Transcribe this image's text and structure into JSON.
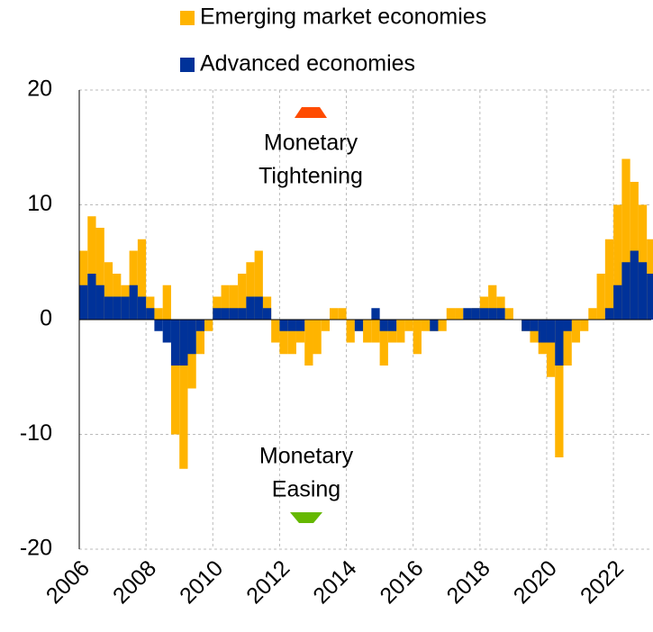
{
  "chart_data": {
    "type": "bar",
    "x": [
      2006,
      2006.25,
      2006.5,
      2006.75,
      2007,
      2007.25,
      2007.5,
      2007.75,
      2008,
      2008.25,
      2008.5,
      2008.75,
      2009,
      2009.25,
      2009.5,
      2009.75,
      2010,
      2010.25,
      2010.5,
      2010.75,
      2011,
      2011.25,
      2011.5,
      2011.75,
      2012,
      2012.25,
      2012.5,
      2012.75,
      2013,
      2013.25,
      2013.5,
      2013.75,
      2014,
      2014.25,
      2014.5,
      2014.75,
      2015,
      2015.25,
      2015.5,
      2015.75,
      2016,
      2016.25,
      2016.5,
      2016.75,
      2017,
      2017.25,
      2017.5,
      2017.75,
      2018,
      2018.25,
      2018.5,
      2018.75,
      2019,
      2019.25,
      2019.5,
      2019.75,
      2020,
      2020.25,
      2020.5,
      2020.75,
      2021,
      2021.25,
      2021.5,
      2021.75,
      2022,
      2022.25,
      2022.5,
      2022.75,
      2023
    ],
    "series": [
      {
        "name": "Emerging market economies",
        "color": "#ffb400",
        "values": [
          6,
          9,
          8,
          5,
          4,
          3,
          6,
          7,
          2,
          1,
          3,
          -10,
          -13,
          -6,
          -3,
          -1,
          2,
          3,
          3,
          4,
          5,
          6,
          2,
          -2,
          -3,
          -3,
          -2,
          -4,
          -3,
          -1,
          1,
          1,
          -2,
          -1,
          -2,
          -2,
          -4,
          -2,
          -2,
          -1,
          -3,
          -1,
          -1,
          -1,
          1,
          1,
          0,
          1,
          2,
          3,
          2,
          1,
          0,
          -1,
          -2,
          -3,
          -5,
          -12,
          -4,
          -2,
          -1,
          1,
          4,
          7,
          10,
          14,
          12,
          10,
          7
        ]
      },
      {
        "name": "Advanced economies",
        "color": "#003299",
        "values": [
          3,
          4,
          3,
          2,
          2,
          2,
          3,
          2,
          1,
          -1,
          -2,
          -4,
          -4,
          -3,
          -1,
          0,
          1,
          1,
          1,
          1,
          2,
          2,
          1,
          0,
          -1,
          -1,
          -1,
          0,
          0,
          0,
          0,
          0,
          0,
          -1,
          0,
          1,
          -1,
          -1,
          0,
          0,
          0,
          0,
          -1,
          0,
          0,
          0,
          1,
          1,
          1,
          1,
          1,
          0,
          0,
          -1,
          -1,
          -2,
          -2,
          -4,
          -1,
          0,
          0,
          0,
          0,
          1,
          3,
          5,
          6,
          5,
          4
        ]
      }
    ],
    "xlim": [
      2006,
      2023.13
    ],
    "xticks": [
      2006,
      2008,
      2010,
      2012,
      2014,
      2016,
      2018,
      2020,
      2022
    ],
    "ylim": [
      -20,
      20
    ],
    "yticks": [
      -20,
      -10,
      0,
      10,
      20
    ],
    "grid": true,
    "legend": "top",
    "annotations": [
      {
        "lines": [
          "Monetary",
          "Tightening"
        ],
        "color": "#ff4b00"
      },
      {
        "lines": [
          "Monetary",
          "Easing"
        ],
        "color": "#65b800"
      }
    ]
  }
}
